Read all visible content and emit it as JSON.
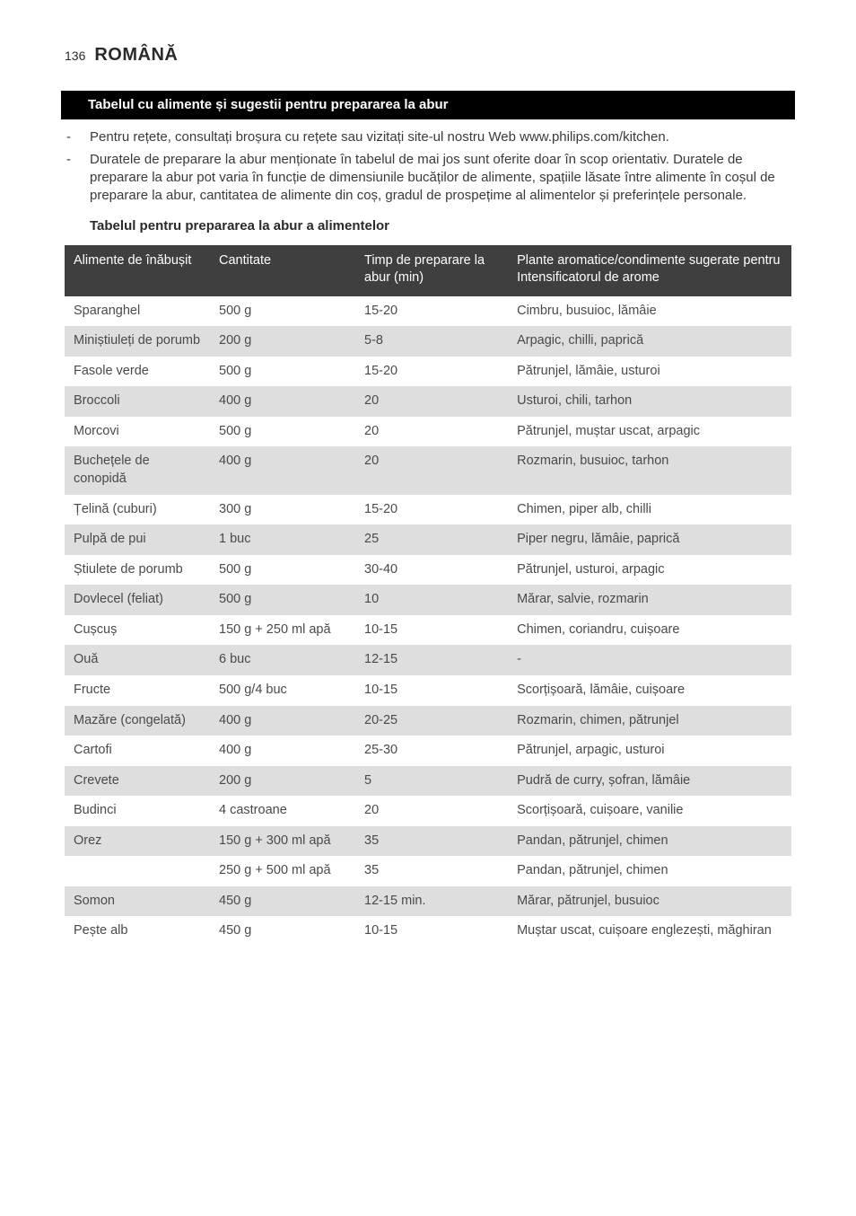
{
  "page_number": "136",
  "language_title": "ROMÂNĂ",
  "section_title": "Tabelul cu alimente și sugestii pentru prepararea la abur",
  "bullets": [
    "Pentru rețete, consultați broșura cu rețete sau vizitați site-ul nostru Web www.philips.com/kitchen.",
    "Duratele de preparare la abur menționate în tabelul de mai jos sunt oferite doar în scop orientativ. Duratele de preparare la abur pot varia în funcție de dimensiunile bucăților de alimente, spațiile lăsate între alimente în coșul de preparare la abur, cantitatea de alimente din coș, gradul de prospețime al alimentelor și preferințele personale."
  ],
  "sub_heading": "Tabelul pentru prepararea la abur a alimentelor",
  "table": {
    "columns": [
      "Alimente de înăbușit",
      "Cantitate",
      "Timp de preparare la abur (min)",
      "Plante aromatice/condimente sugerate pentru Intensificatorul de arome"
    ],
    "rows": [
      {
        "food": "Sparanghel",
        "qty": "500 g",
        "time": "15-20",
        "herbs": "Cimbru, busuioc, lămâie"
      },
      {
        "food": "Miniștiuleți de porumb",
        "qty": "200 g",
        "time": "5-8",
        "herbs": "Arpagic, chilli, paprică"
      },
      {
        "food": "Fasole verde",
        "qty": "500 g",
        "time": "15-20",
        "herbs": "Pătrunjel, lămâie, usturoi"
      },
      {
        "food": "Broccoli",
        "qty": "400 g",
        "time": "20",
        "herbs": "Usturoi, chili, tarhon"
      },
      {
        "food": "Morcovi",
        "qty": "500 g",
        "time": "20",
        "herbs": "Pătrunjel, muștar uscat, arpagic"
      },
      {
        "food": "Buchețele de conopidă",
        "qty": "400 g",
        "time": "20",
        "herbs": "Rozmarin, busuioc, tarhon"
      },
      {
        "food": "Țelină (cuburi)",
        "qty": "300 g",
        "time": "15-20",
        "herbs": "Chimen, piper alb, chilli"
      },
      {
        "food": "Pulpă de pui",
        "qty": "1 buc",
        "time": "25",
        "herbs": "Piper negru, lămâie, paprică"
      },
      {
        "food": "Știulete de porumb",
        "qty": "500 g",
        "time": "30-40",
        "herbs": "Pătrunjel, usturoi, arpagic"
      },
      {
        "food": "Dovlecel (feliat)",
        "qty": "500 g",
        "time": "10",
        "herbs": "Mărar, salvie, rozmarin"
      },
      {
        "food": "Cușcuș",
        "qty": "150 g + 250 ml apă",
        "time": "10-15",
        "herbs": "Chimen, coriandru, cuișoare"
      },
      {
        "food": "Ouă",
        "qty": "6 buc",
        "time": "12-15",
        "herbs": "-"
      },
      {
        "food": "Fructe",
        "qty": "500 g/4 buc",
        "time": "10-15",
        "herbs": "Scorțișoară, lămâie, cuișoare"
      },
      {
        "food": "Mazăre (congelată)",
        "qty": "400 g",
        "time": "20-25",
        "herbs": "Rozmarin, chimen, pătrunjel"
      },
      {
        "food": "Cartofi",
        "qty": "400 g",
        "time": "25-30",
        "herbs": "Pătrunjel, arpagic, usturoi"
      },
      {
        "food": "Crevete",
        "qty": "200 g",
        "time": "5",
        "herbs": "Pudră de curry, șofran, lămâie"
      },
      {
        "food": "Budinci",
        "qty": "4 castroane",
        "time": "20",
        "herbs": "Scorțișoară, cuișoare, vanilie"
      },
      {
        "food": "Orez",
        "qty": "150 g + 300 ml apă",
        "time": "35",
        "herbs": "Pandan, pătrunjel, chimen"
      },
      {
        "food": "",
        "qty": "250 g + 500 ml apă",
        "time": "35",
        "herbs": "Pandan, pătrunjel, chimen"
      },
      {
        "food": "Somon",
        "qty": "450 g",
        "time": "12-15 min.",
        "herbs": "Mărar, pătrunjel, busuioc"
      },
      {
        "food": "Pește alb",
        "qty": "450 g",
        "time": "10-15",
        "herbs": "Muștar uscat, cuișoare englezești, măghiran"
      }
    ]
  },
  "colors": {
    "page_bg": "#ffffff",
    "text": "#3a3a3a",
    "section_bar_bg": "#000000",
    "section_bar_text": "#ffffff",
    "thead_bg": "#3f3f3f",
    "thead_text": "#ffffff",
    "row_alt_bg": "#dedede"
  }
}
